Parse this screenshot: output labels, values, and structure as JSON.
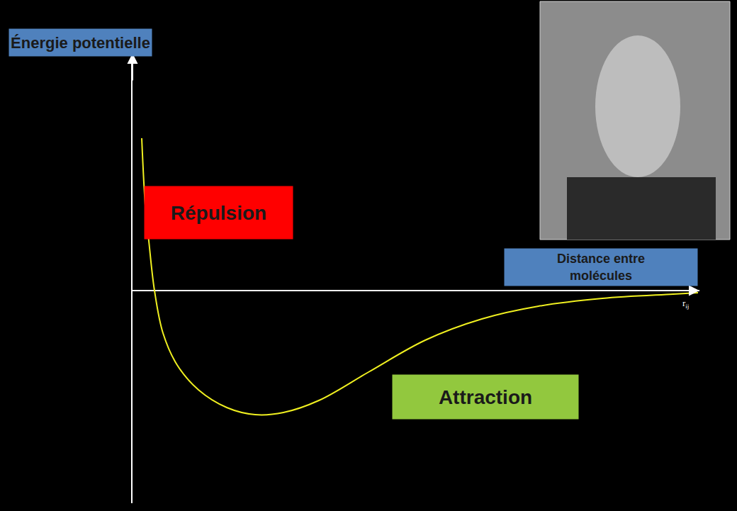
{
  "chart_data": {
    "type": "line",
    "y_label": "Énergie potentielle",
    "x_label": "Distance entre molécules",
    "x_symbol": {
      "text": "r",
      "subscript": "ij"
    },
    "annotations": [
      "Répulsion",
      "Attraction"
    ],
    "x": [
      0.13,
      0.18,
      0.23,
      0.31,
      0.43,
      0.63,
      0.93,
      1.33,
      1.73,
      2.13,
      2.63,
      3.33,
      4.13,
      4.93,
      5.73,
      6.63,
      7.63,
      7.98
    ],
    "values": [
      2.15,
      1.2,
      0.7,
      0,
      -0.6,
      -1.05,
      -1.4,
      -1.65,
      -1.75,
      -1.72,
      -1.55,
      -1.15,
      -0.7,
      -0.4,
      -0.22,
      -0.11,
      -0.05,
      -0.03
    ],
    "color": "#f0f020",
    "xlim": [
      0,
      8
    ],
    "ylim": [
      -3,
      3.4
    ],
    "xticks": [],
    "yticks": [],
    "tick_labels": false,
    "grid": false
  }
}
